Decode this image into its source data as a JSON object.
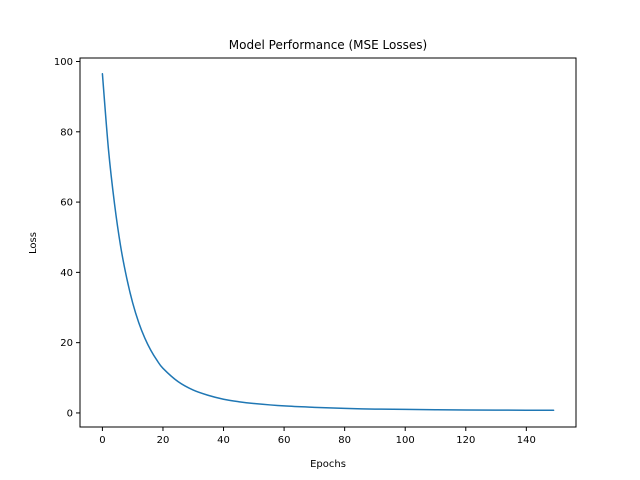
{
  "chart_data": {
    "type": "line",
    "title": "Model Performance (MSE Losses)",
    "xlabel": "Epochs",
    "ylabel": "Loss",
    "xlim": [
      -7.4,
      156.4
    ],
    "ylim": [
      -4.0,
      101.0
    ],
    "x_ticks": [
      0,
      20,
      40,
      60,
      80,
      100,
      120,
      140
    ],
    "y_ticks": [
      0,
      20,
      40,
      60,
      80,
      100
    ],
    "grid": false,
    "legend": "none",
    "series": [
      {
        "color": "#1f77b4",
        "x": [
          0,
          2,
          4,
          6,
          8,
          10,
          12,
          14,
          16,
          18,
          20,
          25,
          30,
          35,
          40,
          45,
          50,
          60,
          70,
          80,
          90,
          100,
          110,
          120,
          130,
          140,
          149
        ],
        "y": [
          96.5,
          75.0,
          59.5,
          47.5,
          38.5,
          31.3,
          25.7,
          21.3,
          17.8,
          15.0,
          12.7,
          8.9,
          6.5,
          5.0,
          3.9,
          3.2,
          2.7,
          2.0,
          1.6,
          1.3,
          1.1,
          1.0,
          0.9,
          0.85,
          0.8,
          0.78,
          0.75
        ]
      }
    ]
  }
}
